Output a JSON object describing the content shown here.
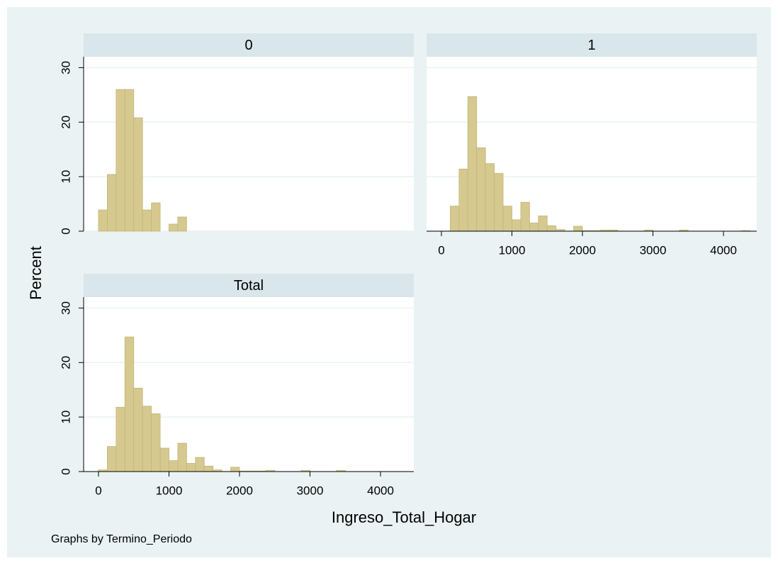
{
  "y_label": "Percent",
  "x_label": "Ingreso_Total_Hogar",
  "note": "Graphs by Termino_Periodo",
  "chart_data": [
    {
      "type": "histogram",
      "title": "0",
      "color": "#d6c98f",
      "bins": [
        0,
        125,
        250,
        375,
        500,
        625,
        750,
        875,
        1000,
        1125,
        1250,
        1375,
        1500,
        1625,
        1750,
        1875,
        2000,
        2125,
        2250,
        2375,
        2500,
        2625,
        2750,
        2875,
        3000,
        3125,
        3250,
        3375,
        3500,
        3625,
        3750,
        3875,
        4000,
        4125,
        4250,
        4375
      ],
      "values": [
        3.9,
        10.4,
        26,
        26,
        20.8,
        3.9,
        5.2,
        0,
        1.3,
        2.6,
        0,
        0,
        0,
        0,
        0,
        0,
        0,
        0,
        0,
        0,
        0,
        0,
        0,
        0,
        0,
        0,
        0,
        0,
        0,
        0,
        0,
        0,
        0,
        0,
        0
      ],
      "xlim": [
        -211,
        4472
      ],
      "ylim": [
        0,
        32
      ],
      "yticks": [
        0,
        10,
        20,
        30
      ],
      "grid": true,
      "show_y_axis": true
    },
    {
      "type": "histogram",
      "title": "1",
      "color": "#d6c98f",
      "bins": [
        0,
        125,
        250,
        375,
        500,
        625,
        750,
        875,
        1000,
        1125,
        1250,
        1375,
        1500,
        1625,
        1750,
        1875,
        2000,
        2125,
        2250,
        2375,
        2500,
        2625,
        2750,
        2875,
        3000,
        3125,
        3250,
        3375,
        3500,
        3625,
        3750,
        3875,
        4000,
        4125,
        4250,
        4375
      ],
      "values": [
        0,
        4.6,
        11.4,
        24.7,
        15.3,
        12.4,
        10.6,
        4.6,
        2.1,
        5.3,
        1.5,
        2.8,
        1,
        0.3,
        0,
        0.9,
        0.1,
        0.1,
        0.2,
        0.2,
        0,
        0,
        0,
        0.2,
        0,
        0,
        0,
        0.2,
        0,
        0,
        0,
        0,
        0,
        0,
        0.1
      ],
      "xlim": [
        -211,
        4472
      ],
      "xticks": [
        0,
        1000,
        2000,
        3000,
        4000
      ],
      "ylim": [
        0,
        32
      ],
      "yticks": [
        0,
        10,
        20,
        30
      ],
      "grid": true,
      "show_y_axis": false
    },
    {
      "type": "histogram",
      "title": "Total",
      "color": "#d6c98f",
      "bins": [
        0,
        125,
        250,
        375,
        500,
        625,
        750,
        875,
        1000,
        1125,
        1250,
        1375,
        1500,
        1625,
        1750,
        1875,
        2000,
        2125,
        2250,
        2375,
        2500,
        2625,
        2750,
        2875,
        3000,
        3125,
        3250,
        3375,
        3500,
        3625,
        3750,
        3875,
        4000,
        4125,
        4250,
        4375
      ],
      "values": [
        0.3,
        4.6,
        11.8,
        24.7,
        15.3,
        12,
        10.6,
        4.3,
        2,
        5.2,
        1.5,
        2.6,
        1,
        0.3,
        0,
        0.8,
        0.1,
        0.1,
        0.1,
        0.2,
        0,
        0,
        0,
        0.2,
        0,
        0,
        0,
        0.2,
        0,
        0,
        0,
        0,
        0,
        0,
        0
      ],
      "xlim": [
        -211,
        4472
      ],
      "xticks": [
        0,
        1000,
        2000,
        3000,
        4000
      ],
      "ylim": [
        0,
        32
      ],
      "yticks": [
        0,
        10,
        20,
        30
      ],
      "grid": true,
      "show_y_axis": true
    }
  ]
}
